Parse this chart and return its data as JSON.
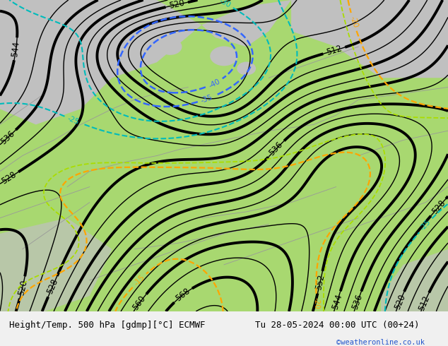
{
  "title_left": "Height/Temp. 500 hPa [gdmp][°C] ECMWF",
  "title_right": "Tu 28-05-2024 00:00 UTC (00+24)",
  "copyright": "©weatheronline.co.uk",
  "map_bg": "#c8c8c8",
  "green_fill": "#a8d870",
  "bottom_bar_color": "#f0f0f0",
  "z500_color": "#000000",
  "temp_warm_color": "#ffa500",
  "temp_cold_blue": "#3366ff",
  "temp_cold_cyan": "#00bbbb",
  "temp_green": "#88cc44",
  "temp_lime": "#aadd00",
  "figsize": [
    6.34,
    4.9
  ],
  "dpi": 100
}
